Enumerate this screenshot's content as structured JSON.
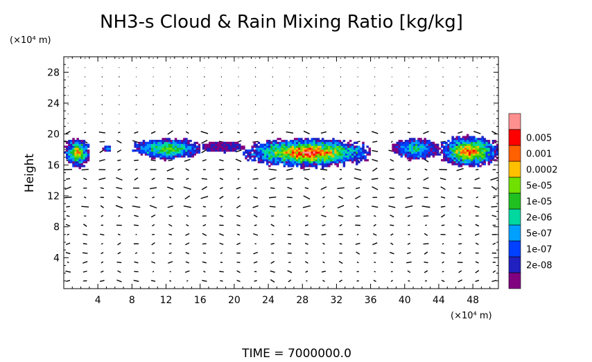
{
  "chart_data": {
    "type": "heatmap",
    "title": "NH3-s Cloud & Rain Mixing Ratio [kg/kg]",
    "ylabel": "Height",
    "y_unit_label": "(×10⁴ m)",
    "x_unit_label": "(×10⁴ m)",
    "footer": "TIME  =  7000000.0",
    "xlim": [
      0,
      51
    ],
    "ylim": [
      0,
      30
    ],
    "x_ticks": [
      4,
      8,
      12,
      16,
      20,
      24,
      28,
      32,
      36,
      40,
      44,
      48
    ],
    "y_ticks": [
      4,
      8,
      12,
      16,
      20,
      24,
      28
    ],
    "grid": false,
    "legend": "right",
    "overlay": "wind vectors (quiver field)",
    "colorbar": {
      "labels": [
        "2e-08",
        "1e-07",
        "5e-07",
        "2e-06",
        "1e-05",
        "5e-05",
        "0.0002",
        "0.001",
        "0.005"
      ],
      "colors": [
        "#800080",
        "#2020c0",
        "#0040ff",
        "#00a0ff",
        "#00d8a0",
        "#20c020",
        "#70e000",
        "#ffc000",
        "#ff6000",
        "#ff0000",
        "#ff9090"
      ]
    },
    "cloud_regions": [
      {
        "x": [
          0,
          3
        ],
        "y": [
          15.5,
          19.5
        ],
        "max_level": 8
      },
      {
        "x": [
          4.5,
          5.5
        ],
        "y": [
          17.5,
          18.5
        ],
        "max_level": 3
      },
      {
        "x": [
          8,
          16
        ],
        "y": [
          16.5,
          19.5
        ],
        "max_level": 6
      },
      {
        "x": [
          16,
          21
        ],
        "y": [
          17.5,
          19
        ],
        "max_level": 1
      },
      {
        "x": [
          21,
          36
        ],
        "y": [
          15.5,
          19.5
        ],
        "max_level": 10
      },
      {
        "x": [
          38.5,
          44
        ],
        "y": [
          16.5,
          19.5
        ],
        "max_level": 5
      },
      {
        "x": [
          44,
          51
        ],
        "y": [
          15.5,
          19.8
        ],
        "max_level": 9
      }
    ]
  }
}
